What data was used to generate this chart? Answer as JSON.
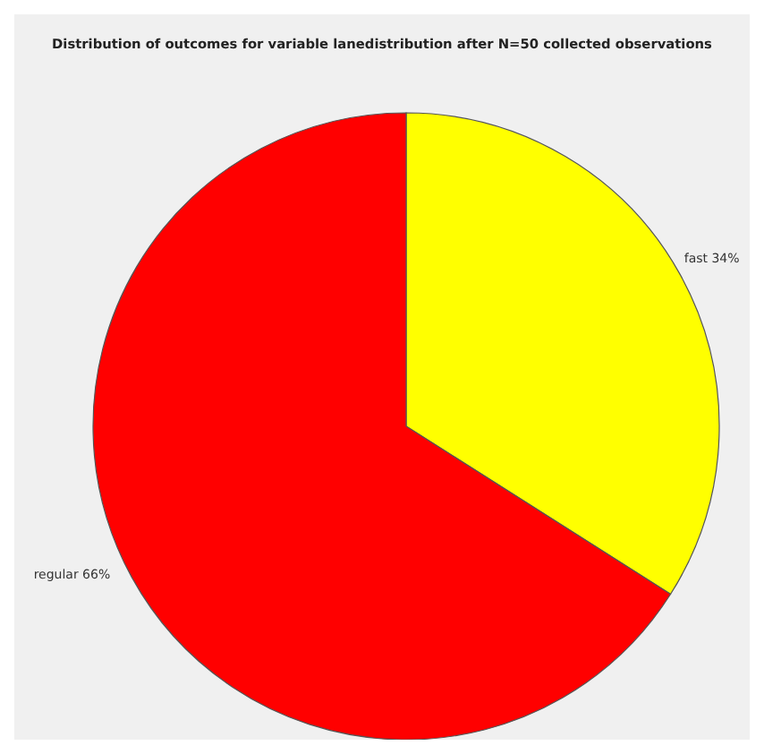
{
  "chart_data": {
    "type": "pie",
    "title": "Distribution of outcomes for variable lanedistribution after N=50 collected observations",
    "categories": [
      "fast",
      "regular"
    ],
    "values": [
      34,
      66
    ],
    "colors": [
      "#ffff00",
      "#ff0000"
    ],
    "value_labels": [
      "34%",
      "66%"
    ]
  }
}
